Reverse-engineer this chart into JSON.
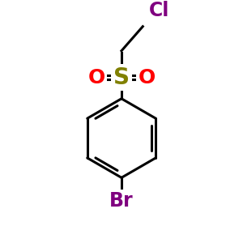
{
  "background_color": "#ffffff",
  "bond_color": "#000000",
  "S_color": "#808000",
  "O_color": "#ff0000",
  "Cl_color": "#800080",
  "Br_color": "#800080",
  "S_label": "S",
  "O_label": "O",
  "Cl_label": "Cl",
  "Br_label": "Br",
  "font_size_S": 20,
  "font_size_O": 18,
  "font_size_halo": 17,
  "lw": 2.2
}
